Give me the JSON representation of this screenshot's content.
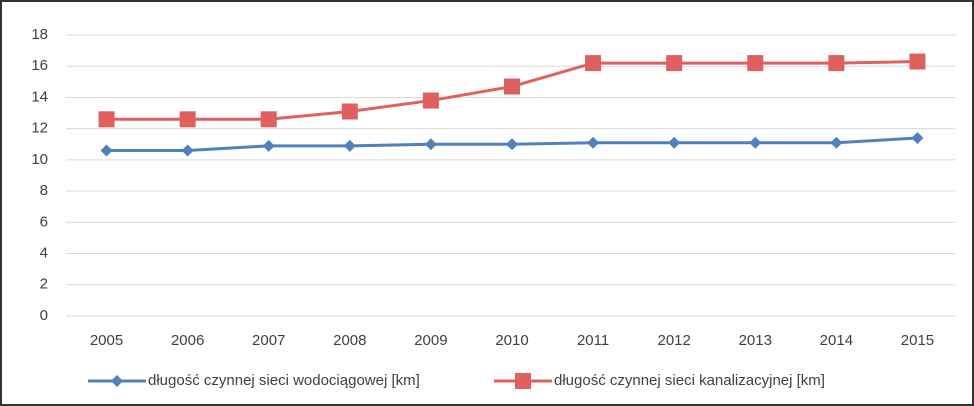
{
  "chart_data": {
    "type": "line",
    "categories": [
      "2005",
      "2006",
      "2007",
      "2008",
      "2009",
      "2010",
      "2011",
      "2012",
      "2013",
      "2014",
      "2015"
    ],
    "series": [
      {
        "name": "długość czynnej sieci wodociągowej [km]",
        "color": "#4f81bd",
        "marker": "diamond",
        "values": [
          10.6,
          10.6,
          10.9,
          10.9,
          11.0,
          11.0,
          11.1,
          11.1,
          11.1,
          11.1,
          11.4
        ]
      },
      {
        "name": "długość czynnej sieci kanalizacyjnej [km]",
        "color": "#e06060",
        "marker": "square",
        "values": [
          12.6,
          12.6,
          12.6,
          13.1,
          13.8,
          14.7,
          16.2,
          16.2,
          16.2,
          16.2,
          16.3
        ]
      }
    ],
    "ylim": [
      0,
      18
    ],
    "yticks": [
      0,
      2,
      4,
      6,
      8,
      10,
      12,
      14,
      16,
      18
    ],
    "grid": true,
    "legend": "bottom"
  }
}
